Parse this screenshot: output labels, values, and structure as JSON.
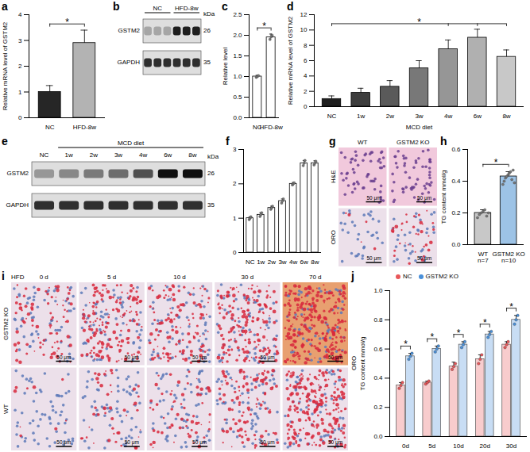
{
  "chart_data": [
    {
      "panel": "a",
      "type": "bar",
      "ylabel": "Relative mRNA level of GSTM2",
      "categories": [
        "NC",
        "HFD-8w"
      ],
      "values": [
        1.0,
        2.9
      ],
      "errors": [
        0.25,
        0.5
      ],
      "colors": [
        "#262626",
        "#b3b3b3"
      ],
      "ylim": [
        0,
        4
      ],
      "yticks": [
        0,
        1,
        2,
        3,
        4
      ],
      "significance": [
        {
          "text": "*",
          "from": "NC",
          "to": "HFD-8w"
        }
      ]
    },
    {
      "panel": "c",
      "type": "bar",
      "ylabel": "Relative level",
      "categories": [
        "NC",
        "HFD-8w"
      ],
      "values": [
        1.0,
        1.95
      ],
      "errors": [
        0.03,
        0.08
      ],
      "points": [
        [
          0.98,
          1.0,
          1.02
        ],
        [
          1.9,
          1.96,
          2.0
        ]
      ],
      "color": "#ffffff",
      "ylim": [
        0,
        2.5
      ],
      "yticks": [
        {
          "value": 0,
          "label": "0.0"
        },
        {
          "value": 0.5,
          "label": "0.5"
        },
        {
          "value": 1,
          "label": "1.0"
        },
        {
          "value": 1.5,
          "label": "1.5"
        },
        {
          "value": 2,
          "label": "2.0"
        },
        {
          "value": 2.5,
          "label": "2.5"
        }
      ],
      "significance": [
        {
          "text": "*",
          "from": "NC",
          "to": "HFD-8w"
        }
      ]
    },
    {
      "panel": "d",
      "type": "bar",
      "ylabel": "Relative mRNA level of GSTM2",
      "xlabel": "MCD diet",
      "categories": [
        "NC",
        "1w",
        "2w",
        "3w",
        "4w",
        "6w",
        "8w"
      ],
      "values": [
        1.0,
        1.8,
        2.6,
        5.0,
        7.5,
        9.0,
        6.5
      ],
      "errors": [
        0.4,
        0.6,
        0.8,
        1.0,
        1.2,
        1.1,
        0.9
      ],
      "colors": [
        "#1f1f1f",
        "#3d3d3d",
        "#5a5a5a",
        "#787878",
        "#969696",
        "#b0b0b0",
        "#c8c8c8"
      ],
      "ylim": [
        0,
        12
      ],
      "yticks": [
        0,
        2,
        4,
        6,
        8,
        10,
        12
      ],
      "significance": [
        {
          "text": "*",
          "from": "NC",
          "to": [
            "4w",
            "6w",
            "8w"
          ]
        }
      ]
    },
    {
      "panel": "f",
      "type": "bar",
      "categories": [
        "NC",
        "1w",
        "2w",
        "3w",
        "4w",
        "6w",
        "8w"
      ],
      "values": [
        1.0,
        1.1,
        1.3,
        1.5,
        2.0,
        2.6,
        2.6
      ],
      "errors": [
        0.04,
        0.06,
        0.05,
        0.06,
        0.04,
        0.08,
        0.07
      ],
      "points": [
        [
          0.96,
          1.0,
          1.04
        ],
        [
          1.05,
          1.1,
          1.16
        ],
        [
          1.26,
          1.3,
          1.35
        ],
        [
          1.44,
          1.5,
          1.56
        ],
        [
          1.97,
          2.0,
          2.03
        ],
        [
          2.53,
          2.6,
          2.68
        ],
        [
          2.55,
          2.6,
          2.66
        ]
      ],
      "color": "#ffffff",
      "ylim": [
        0,
        3
      ],
      "yticks": [
        0,
        1,
        2,
        3
      ]
    },
    {
      "panel": "h",
      "type": "bar",
      "ylabel": "TG content mmol/g",
      "categories": [
        "WT",
        "GSTM2 KO"
      ],
      "n_labels": [
        "n=7",
        "n=10"
      ],
      "values": [
        0.2,
        0.43
      ],
      "errors": [
        0.02,
        0.03
      ],
      "points": [
        [
          0.17,
          0.19,
          0.2,
          0.21,
          0.22,
          0.18,
          0.2
        ],
        [
          0.38,
          0.4,
          0.42,
          0.43,
          0.44,
          0.45,
          0.46,
          0.41,
          0.47,
          0.39
        ]
      ],
      "colors": [
        "#c8c8c8",
        "#9dc3e6"
      ],
      "ylim": [
        0,
        0.6
      ],
      "yticks": [
        {
          "value": 0,
          "label": "0.0"
        },
        {
          "value": 0.2,
          "label": "0.2"
        },
        {
          "value": 0.4,
          "label": "0.4"
        },
        {
          "value": 0.6,
          "label": "0.6"
        }
      ],
      "significance": [
        {
          "text": "*",
          "from": "WT",
          "to": "GSTM2 KO"
        }
      ]
    },
    {
      "panel": "j",
      "type": "bar",
      "ylabel": "TG content mmol/g",
      "side_label": "ORO",
      "categories": [
        "0d",
        "5d",
        "10d",
        "20d",
        "30d"
      ],
      "series": [
        {
          "name": "NC",
          "color": "#e8575a",
          "values": [
            0.35,
            0.37,
            0.48,
            0.53,
            0.63
          ],
          "errors": [
            0.02,
            0.01,
            0.03,
            0.03,
            0.02
          ],
          "points": [
            [
              0.33,
              0.35,
              0.37
            ],
            [
              0.36,
              0.37,
              0.38
            ],
            [
              0.46,
              0.48,
              0.5
            ],
            [
              0.5,
              0.53,
              0.56
            ],
            [
              0.61,
              0.63,
              0.65
            ]
          ]
        },
        {
          "name": "GSTM2 KO",
          "color": "#4a90d9",
          "values": [
            0.55,
            0.6,
            0.63,
            0.7,
            0.8
          ],
          "errors": [
            0.02,
            0.02,
            0.02,
            0.02,
            0.03
          ],
          "points": [
            [
              0.53,
              0.55,
              0.57
            ],
            [
              0.58,
              0.6,
              0.62
            ],
            [
              0.61,
              0.63,
              0.65
            ],
            [
              0.68,
              0.7,
              0.72
            ],
            [
              0.77,
              0.8,
              0.83
            ]
          ]
        }
      ],
      "legend": "top-left",
      "ylim": [
        0,
        1.0
      ],
      "yticks": [
        {
          "value": 0,
          "label": "0.0"
        },
        {
          "value": 0.2,
          "label": "0.2"
        },
        {
          "value": 0.4,
          "label": "0.4"
        },
        {
          "value": 0.6,
          "label": "0.6"
        },
        {
          "value": 0.8,
          "label": "0.8"
        },
        {
          "value": 1,
          "label": "1.0"
        }
      ],
      "significance": [
        {
          "text": "*",
          "category": "0d"
        },
        {
          "text": "*",
          "category": "5d"
        },
        {
          "text": "*",
          "category": "10d"
        },
        {
          "text": "*",
          "category": "20d"
        },
        {
          "text": "*",
          "category": "30d"
        }
      ]
    }
  ],
  "images": [
    {
      "panel": "b",
      "type": "blot",
      "unit": "kDa",
      "groups": [
        {
          "label": "NC",
          "lanes": 3
        },
        {
          "label": "HFD-8w",
          "lanes": 3
        }
      ],
      "rows": [
        {
          "label": "GSTM2",
          "kda": 26,
          "intensity": [
            0.45,
            0.45,
            0.45,
            0.9,
            0.9,
            0.9
          ]
        },
        {
          "label": "GAPDH",
          "kda": 35,
          "intensity": [
            0.85,
            0.85,
            0.85,
            0.85,
            0.85,
            0.85
          ]
        }
      ]
    },
    {
      "panel": "e",
      "type": "blot",
      "unit": "kDa",
      "groups": [
        {
          "label": null,
          "lanes": [
            "NC"
          ]
        },
        {
          "label": "MCD diet",
          "lanes": [
            "1w",
            "2w",
            "3w",
            "4w",
            "6w",
            "8w"
          ]
        }
      ],
      "rows": [
        {
          "label": "GSTM2",
          "kda": 26,
          "intensity": [
            0.5,
            0.55,
            0.6,
            0.65,
            0.75,
            0.95,
            0.95
          ]
        },
        {
          "label": "GAPDH",
          "kda": 35,
          "intensity": [
            0.85,
            0.85,
            0.85,
            0.85,
            0.85,
            0.85,
            0.85
          ]
        }
      ]
    },
    {
      "panel": "g",
      "type": "micrograph",
      "columns": [
        "WT",
        "GSTM2 KO"
      ],
      "rows": [
        "H&E",
        "ORO"
      ],
      "scale_bar": "50 μm"
    },
    {
      "panel": "i",
      "type": "micrograph",
      "header": "HFD",
      "columns": [
        "0 d",
        "5 d",
        "10 d",
        "30 d",
        "70 d"
      ],
      "rows": [
        "GSTM2 KO",
        "WT"
      ],
      "scale_bar": "50 μm"
    }
  ]
}
